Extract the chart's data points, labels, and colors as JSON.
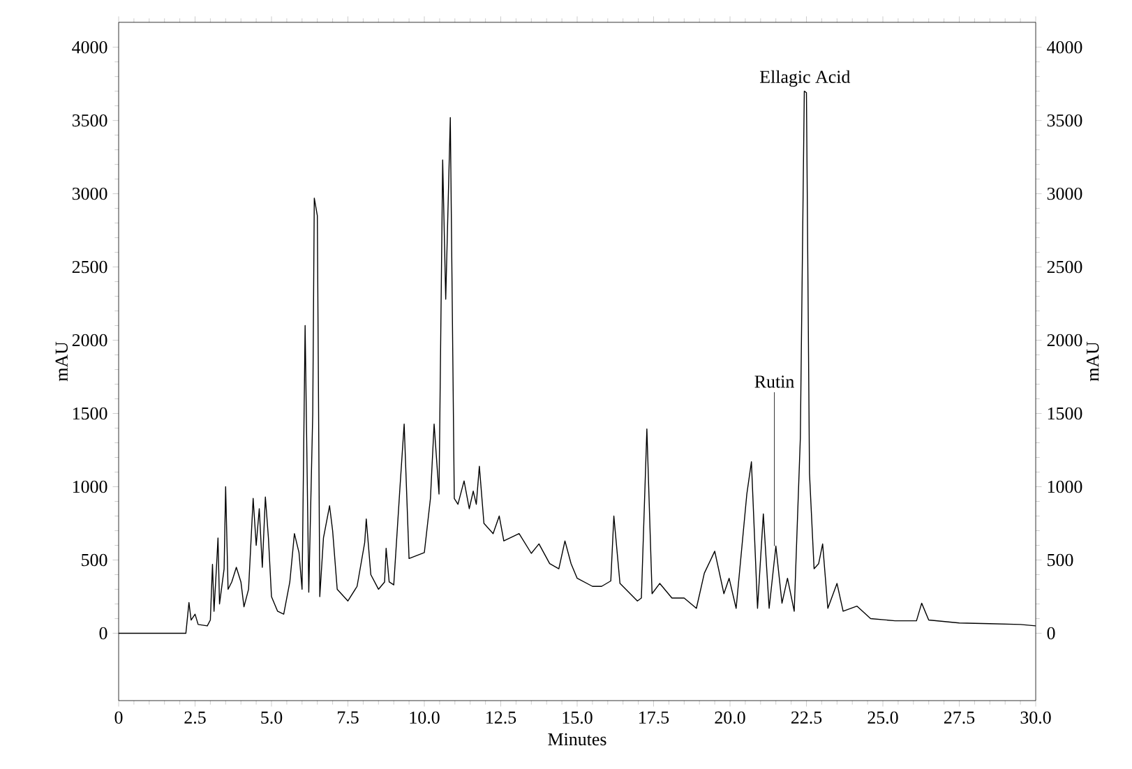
{
  "chart_data": {
    "type": "line",
    "xlabel": "Minutes",
    "ylabel": "mAU",
    "y2label": "mAU",
    "xlim": [
      0,
      30
    ],
    "ylim": [
      -460,
      4170
    ],
    "y2lim": [
      -460,
      4170
    ],
    "xticks": [
      0,
      2.5,
      {
        "value": 5,
        "label": "5.0"
      },
      7.5,
      {
        "value": 10,
        "label": "10.0"
      },
      12.5,
      {
        "value": 15,
        "label": "15.0"
      },
      17.5,
      {
        "value": 20,
        "label": "20.0"
      },
      22.5,
      {
        "value": 25,
        "label": "25.0"
      },
      27.5,
      {
        "value": 30,
        "label": "30.0"
      }
    ],
    "yticks": [
      0,
      500,
      1000,
      1500,
      2000,
      2500,
      3000,
      3500,
      4000
    ],
    "y2ticks": [
      0,
      500,
      1000,
      1500,
      2000,
      2500,
      3000,
      3500,
      4000
    ],
    "annotations": [
      {
        "text": "Rutin",
        "x": 21.45,
        "y": 595
      },
      {
        "text": "Ellagic Acid",
        "x": 22.45,
        "y": 3700
      }
    ],
    "series": [
      {
        "color": "#000000",
        "x": [
          0,
          2.2,
          2.3,
          2.37,
          2.5,
          2.6,
          2.9,
          3.0,
          3.07,
          3.12,
          3.2,
          3.25,
          3.3,
          3.45,
          3.5,
          3.58,
          3.7,
          3.85,
          4.0,
          4.1,
          4.25,
          4.4,
          4.5,
          4.6,
          4.7,
          4.8,
          4.9,
          5.0,
          5.2,
          5.4,
          5.6,
          5.75,
          5.9,
          6.0,
          6.1,
          6.22,
          6.35,
          6.4,
          6.5,
          6.58,
          6.7,
          6.9,
          7.0,
          7.15,
          7.5,
          7.8,
          8.05,
          8.1,
          8.25,
          8.5,
          8.7,
          8.75,
          8.85,
          9.0,
          9.2,
          9.34,
          9.5,
          10.0,
          10.2,
          10.32,
          10.48,
          10.6,
          10.7,
          10.85,
          10.98,
          11.1,
          11.3,
          11.47,
          11.6,
          11.7,
          11.8,
          11.95,
          12.25,
          12.45,
          12.6,
          13.1,
          13.5,
          13.75,
          14.1,
          14.4,
          14.6,
          14.8,
          15.0,
          15.5,
          15.8,
          16.1,
          16.2,
          16.4,
          16.97,
          17.1,
          17.28,
          17.45,
          17.7,
          18.1,
          18.5,
          18.9,
          19.16,
          19.5,
          19.8,
          19.97,
          20.2,
          20.55,
          20.7,
          20.9,
          21.09,
          21.28,
          21.5,
          21.7,
          21.88,
          22.1,
          22.3,
          22.43,
          22.5,
          22.6,
          22.75,
          22.9,
          23.03,
          23.2,
          23.5,
          23.7,
          24.15,
          24.6,
          25.4,
          26.1,
          26.27,
          26.5,
          27.0,
          27.5,
          28.5,
          29.5,
          30.0
        ],
        "values": [
          0,
          0,
          210,
          90,
          130,
          60,
          50,
          90,
          470,
          150,
          450,
          650,
          200,
          440,
          1000,
          300,
          350,
          450,
          350,
          180,
          300,
          920,
          600,
          850,
          450,
          930,
          650,
          250,
          150,
          130,
          350,
          680,
          550,
          300,
          2100,
          280,
          1500,
          2970,
          2850,
          250,
          650,
          870,
          700,
          300,
          220,
          320,
          620,
          780,
          400,
          300,
          350,
          580,
          350,
          330,
          986,
          1428,
          510,
          550,
          920,
          1428,
          950,
          3230,
          2280,
          3520,
          920,
          880,
          1040,
          850,
          970,
          880,
          1140,
          750,
          680,
          800,
          630,
          680,
          545,
          610,
          475,
          440,
          630,
          475,
          375,
          320,
          320,
          357,
          800,
          340,
          220,
          240,
          1394,
          270,
          340,
          240,
          240,
          170,
          410,
          560,
          270,
          375,
          170,
          950,
          1170,
          170,
          815,
          170,
          595,
          205,
          375,
          150,
          1330,
          3700,
          3690,
          1090,
          440,
          475,
          610,
          170,
          340,
          150,
          185,
          100,
          85,
          85,
          205,
          90,
          80,
          70,
          65,
          60,
          50
        ]
      }
    ]
  }
}
